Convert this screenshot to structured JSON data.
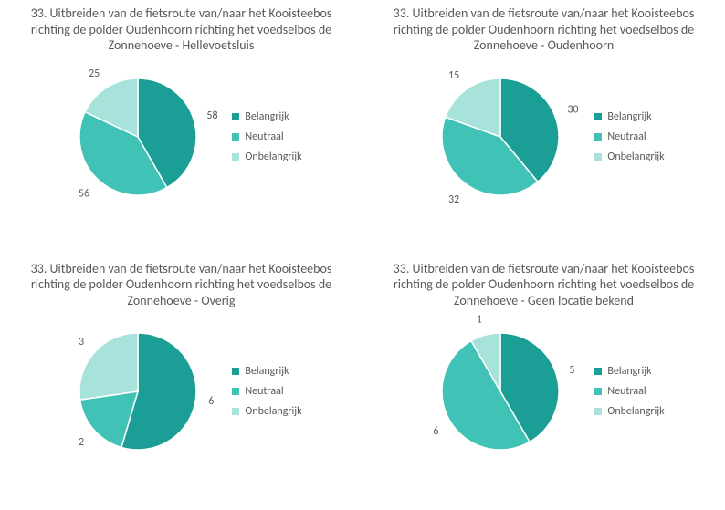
{
  "legend_labels": {
    "a": "Belangrijk",
    "b": "Neutraal",
    "c": "Onbelangrijk"
  },
  "colors": {
    "belangrijk": "#1a9e96",
    "neutraal": "#41c2b6",
    "onbelangrijk": "#a7e3db",
    "text": "#595959",
    "background": "#ffffff"
  },
  "pie_geometry": {
    "radius": 64,
    "label_offset": 14,
    "svg_size": 170,
    "start_angle_deg": -90
  },
  "title_fontsize": 14,
  "legend_fontsize": 12,
  "label_fontsize": 12,
  "charts": [
    {
      "id": "tl",
      "title": "33. Uitbreiden van de fietsroute van/naar het Kooisteebos richting de polder Oudenhoorn richting het voedselbos de Zonnehoeve - Hellevoetsluis",
      "type": "pie",
      "slices": [
        {
          "key": "a",
          "value": 58,
          "color": "#1a9e96"
        },
        {
          "key": "b",
          "value": 56,
          "color": "#41c2b6"
        },
        {
          "key": "c",
          "value": 25,
          "color": "#a7e3db"
        }
      ]
    },
    {
      "id": "tr",
      "title": "33. Uitbreiden van de fietsroute van/naar het Kooisteebos richting de polder Oudenhoorn richting het voedselbos de Zonnehoeve - Oudenhoorn",
      "type": "pie",
      "slices": [
        {
          "key": "a",
          "value": 30,
          "color": "#1a9e96"
        },
        {
          "key": "b",
          "value": 32,
          "color": "#41c2b6"
        },
        {
          "key": "c",
          "value": 15,
          "color": "#a7e3db"
        }
      ]
    },
    {
      "id": "bl",
      "title": "33. Uitbreiden van de fietsroute van/naar het Kooisteebos richting de polder Oudenhoorn richting het voedselbos de Zonnehoeve - Overig",
      "type": "pie",
      "slices": [
        {
          "key": "a",
          "value": 6,
          "color": "#1a9e96"
        },
        {
          "key": "b",
          "value": 2,
          "color": "#41c2b6"
        },
        {
          "key": "c",
          "value": 3,
          "color": "#a7e3db"
        }
      ]
    },
    {
      "id": "br",
      "title": "33. Uitbreiden van de fietsroute van/naar het Kooisteebos richting de polder Oudenhoorn richting het voedselbos de Zonnehoeve - Geen locatie bekend",
      "type": "pie",
      "slices": [
        {
          "key": "a",
          "value": 5,
          "color": "#1a9e96"
        },
        {
          "key": "b",
          "value": 6,
          "color": "#41c2b6"
        },
        {
          "key": "c",
          "value": 1,
          "color": "#a7e3db"
        }
      ]
    }
  ]
}
